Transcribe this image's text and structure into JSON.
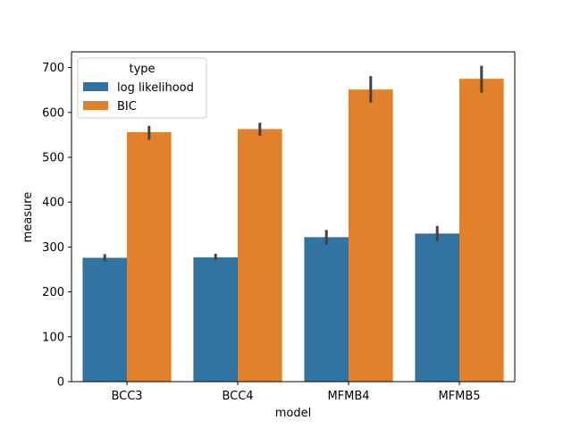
{
  "chart_data": {
    "type": "bar",
    "xlabel": "model",
    "ylabel": "measure",
    "categories": [
      "BCC3",
      "BCC4",
      "MFMB4",
      "MFMB5"
    ],
    "ylim": [
      0,
      735
    ],
    "yticks": [
      0,
      100,
      200,
      300,
      400,
      500,
      600,
      700
    ],
    "grid": false,
    "legend": {
      "title": "type",
      "placement": "top-left"
    },
    "series": [
      {
        "name": "log likelihood",
        "color": "#3274a1",
        "values": [
          276,
          277,
          322,
          330
        ],
        "error_low": [
          268,
          271,
          305,
          313
        ],
        "error_high": [
          284,
          285,
          338,
          347
        ]
      },
      {
        "name": "BIC",
        "color": "#e1812c",
        "values": [
          556,
          563,
          651,
          675
        ],
        "error_low": [
          539,
          548,
          622,
          644
        ],
        "error_high": [
          570,
          577,
          681,
          704
        ]
      }
    ],
    "errorbar_color": "#424242"
  }
}
